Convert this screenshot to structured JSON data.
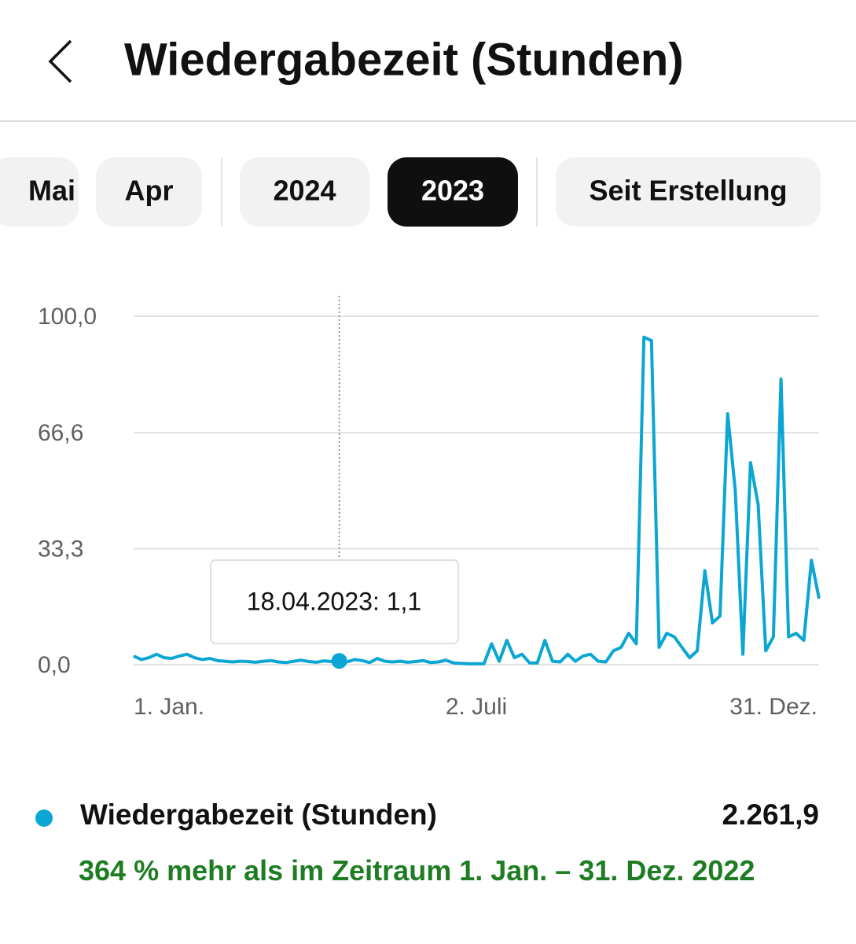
{
  "header": {
    "title": "Wiedergabezeit (Stunden)"
  },
  "tabs": [
    {
      "label": "Mai"
    },
    {
      "label": "Apr"
    },
    {
      "label": "2024"
    },
    {
      "label": "2023",
      "selected": true
    },
    {
      "label": "Seit Erstellung"
    }
  ],
  "chart_data": {
    "type": "line",
    "categories": [
      "1. Jan.",
      null,
      null,
      null,
      null,
      null,
      null,
      null,
      null,
      null,
      null,
      null,
      null,
      null,
      null,
      null,
      null,
      null,
      null,
      null,
      null,
      null,
      null,
      null,
      null,
      null,
      null,
      null,
      null,
      null,
      null,
      null,
      null,
      null,
      null,
      null,
      null,
      null,
      null,
      null,
      null,
      null,
      null,
      null,
      null,
      "2. Juli",
      null,
      null,
      null,
      null,
      null,
      null,
      null,
      null,
      null,
      null,
      null,
      null,
      null,
      null,
      null,
      null,
      null,
      null,
      null,
      null,
      null,
      null,
      null,
      null,
      null,
      null,
      null,
      null,
      null,
      null,
      null,
      null,
      null,
      null,
      null,
      null,
      null,
      null,
      null,
      null,
      null,
      null,
      null,
      null,
      "31. Dez."
    ],
    "series": [
      {
        "name": "Wiedergabezeit (Stunden)",
        "color": "#0ba6d3",
        "values": [
          2.5,
          1.5,
          2,
          3,
          2,
          1.8,
          2.5,
          3,
          2,
          1.5,
          1.8,
          1.2,
          1,
          0.8,
          1,
          0.9,
          0.7,
          1,
          1.2,
          0.8,
          0.6,
          1,
          1.3,
          0.9,
          0.7,
          1.1,
          0.9,
          1.1,
          0.8,
          1.5,
          1.2,
          0.6,
          1.8,
          1,
          0.8,
          1,
          0.7,
          0.9,
          1.2,
          0.6,
          0.8,
          1.3,
          0.5,
          0.4,
          0.3,
          0.3,
          0.3,
          6,
          1,
          7,
          2,
          3,
          0.5,
          0.5,
          7,
          1,
          0.8,
          3,
          1,
          2.5,
          3,
          1,
          0.8,
          4,
          5,
          9,
          6,
          94,
          93,
          5,
          9,
          8,
          5,
          2,
          4,
          27,
          12,
          14,
          72,
          50,
          3,
          58,
          46,
          4,
          8,
          82,
          8,
          9,
          7,
          30,
          19
        ]
      }
    ],
    "ylim": [
      0,
      100
    ],
    "yticks": [
      {
        "value": 0,
        "label": "0,0"
      },
      {
        "value": 33.3,
        "label": "33,3"
      },
      {
        "value": 66.6,
        "label": "66,6"
      },
      {
        "value": 100,
        "label": "100,0"
      }
    ],
    "grid": true,
    "tooltip": "18.04.2023: 1,1"
  },
  "summary": {
    "total": "2.261,9",
    "comparison": "364 % mehr als im Zeitraum 1. Jan. – 31. Dez. 2022"
  }
}
